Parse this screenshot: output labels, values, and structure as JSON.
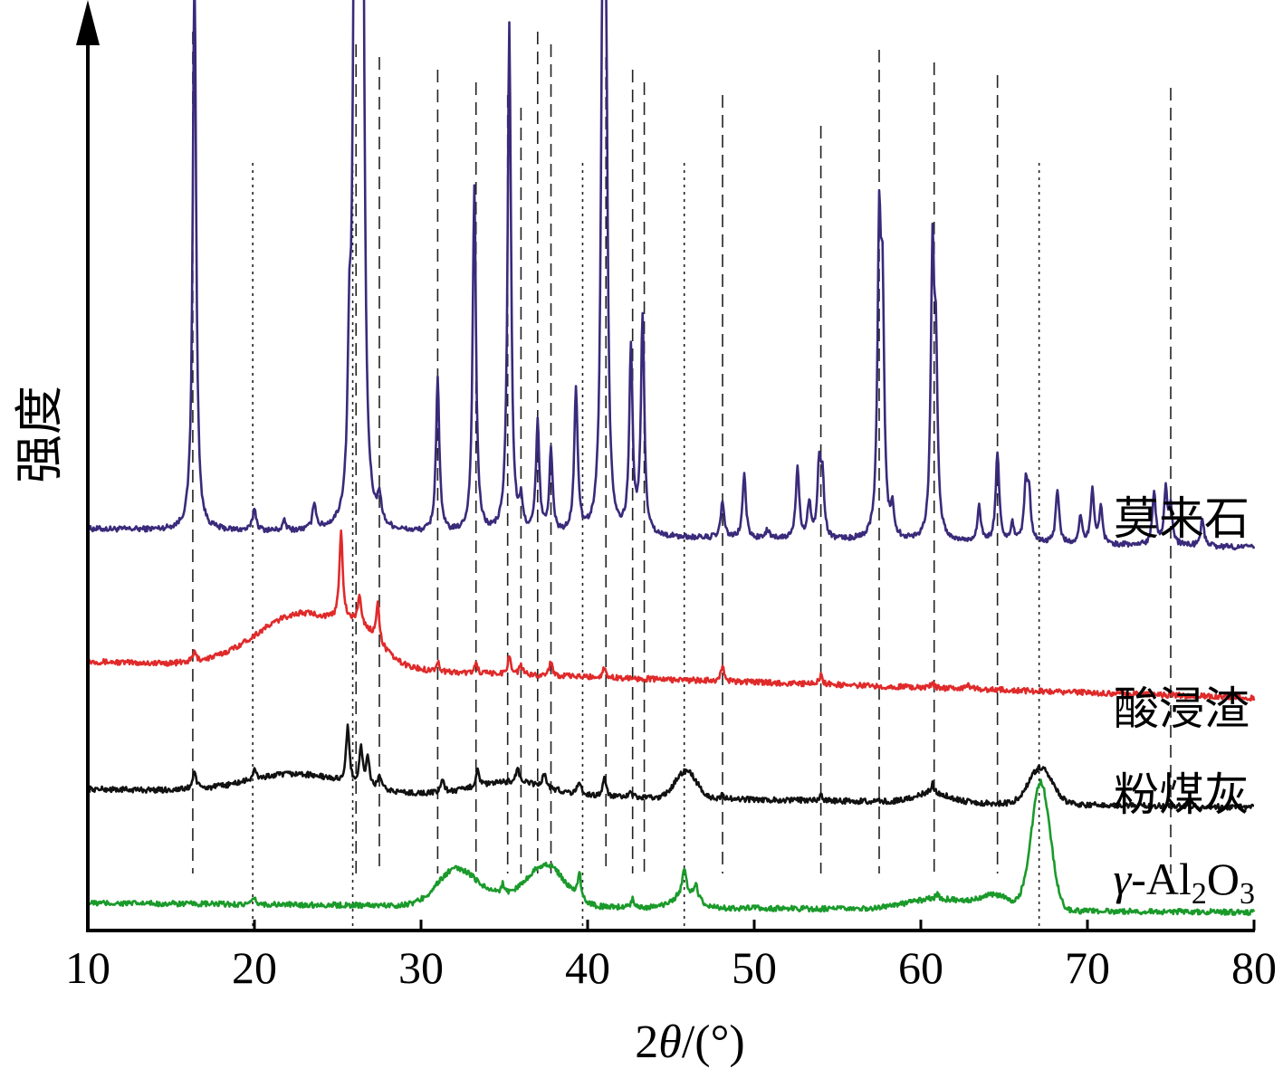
{
  "chart_data": {
    "type": "line",
    "xlabel": "2θ/(°)",
    "xlabel_parts": {
      "prefix": "2",
      "theta": "θ",
      "suffix": "/(°)"
    },
    "ylabel": "强度",
    "xlim": [
      10,
      80
    ],
    "xticks": [
      10,
      20,
      30,
      40,
      50,
      60,
      70,
      80
    ],
    "ylim": [
      0,
      1
    ],
    "y_ticks_shown": false,
    "grid": false,
    "legend": "inline labels at right end of each trace",
    "series": [
      {
        "name": "莫来石",
        "color": "#3a2a7a",
        "baseline": 0.44,
        "peaks": [
          [
            16.4,
            0.62
          ],
          [
            20.0,
            0.025
          ],
          [
            21.8,
            0.01
          ],
          [
            23.6,
            0.03
          ],
          [
            25.7,
            0.16
          ],
          [
            26.0,
            0.58
          ],
          [
            26.3,
            0.88
          ],
          [
            26.5,
            0.6
          ],
          [
            27.5,
            0.03
          ],
          [
            31.0,
            0.17
          ],
          [
            33.2,
            0.38
          ],
          [
            35.3,
            0.56
          ],
          [
            36.0,
            0.03
          ],
          [
            37.0,
            0.12
          ],
          [
            37.8,
            0.09
          ],
          [
            39.3,
            0.16
          ],
          [
            40.9,
            0.54
          ],
          [
            41.1,
            0.48
          ],
          [
            42.6,
            0.2
          ],
          [
            43.3,
            0.24
          ],
          [
            48.1,
            0.04
          ],
          [
            49.4,
            0.07
          ],
          [
            50.8,
            0.01
          ],
          [
            52.6,
            0.08
          ],
          [
            53.3,
            0.04
          ],
          [
            53.9,
            0.08
          ],
          [
            54.1,
            0.06
          ],
          [
            57.5,
            0.32
          ],
          [
            57.7,
            0.24
          ],
          [
            58.3,
            0.03
          ],
          [
            60.7,
            0.3
          ],
          [
            60.9,
            0.18
          ],
          [
            63.5,
            0.04
          ],
          [
            64.6,
            0.1
          ],
          [
            65.5,
            0.02
          ],
          [
            66.3,
            0.06
          ],
          [
            66.5,
            0.05
          ],
          [
            68.2,
            0.06
          ],
          [
            69.6,
            0.03
          ],
          [
            70.3,
            0.06
          ],
          [
            70.8,
            0.04
          ],
          [
            74.0,
            0.06
          ],
          [
            74.7,
            0.06
          ],
          [
            75.0,
            0.04
          ],
          [
            76.9,
            0.03
          ]
        ],
        "humps": [],
        "slope": -0.02
      },
      {
        "name": "酸浸渣",
        "color": "#e02a2a",
        "baseline": 0.295,
        "peaks": [
          [
            16.4,
            0.01
          ],
          [
            25.2,
            0.1
          ],
          [
            26.3,
            0.03
          ],
          [
            27.4,
            0.04
          ],
          [
            31.0,
            0.01
          ],
          [
            33.3,
            0.01
          ],
          [
            35.3,
            0.02
          ],
          [
            36.0,
            0.01
          ],
          [
            37.8,
            0.015
          ],
          [
            41.0,
            0.01
          ],
          [
            48.1,
            0.015
          ],
          [
            54.0,
            0.01
          ],
          [
            60.7,
            0.005
          ],
          [
            62.8,
            0.005
          ]
        ],
        "humps": [
          [
            23.0,
            0.06,
            4.0
          ],
          [
            26.5,
            0.02,
            1.5
          ]
        ],
        "slope": -0.04
      },
      {
        "name": "粉煤灰",
        "color": "#111111",
        "baseline": 0.155,
        "peaks": [
          [
            16.4,
            0.02
          ],
          [
            20.0,
            0.01
          ],
          [
            25.6,
            0.06
          ],
          [
            26.4,
            0.04
          ],
          [
            26.8,
            0.03
          ],
          [
            27.5,
            0.015
          ],
          [
            31.3,
            0.015
          ],
          [
            33.4,
            0.02
          ],
          [
            35.8,
            0.015
          ],
          [
            37.4,
            0.015
          ],
          [
            39.5,
            0.015
          ],
          [
            41.0,
            0.02
          ],
          [
            42.6,
            0.005
          ],
          [
            48.1,
            0.005
          ],
          [
            54.0,
            0.005
          ],
          [
            60.7,
            0.01
          ]
        ],
        "humps": [
          [
            22.5,
            0.02,
            4.0
          ],
          [
            35.5,
            0.015,
            3.0
          ],
          [
            45.9,
            0.03,
            0.9
          ],
          [
            67.2,
            0.04,
            1.0
          ],
          [
            60.7,
            0.01,
            1.5
          ]
        ],
        "slope": -0.02
      },
      {
        "name": "γ-Al₂O₃",
        "label_parts": {
          "prefix": "γ",
          "mid1": "-Al",
          "sub1": "2",
          "mid2": "O",
          "sub2": "3"
        },
        "color": "#1a9a2a",
        "baseline": 0.03,
        "peaks": [
          [
            20.0,
            0.006
          ],
          [
            34.9,
            0.01
          ],
          [
            39.5,
            0.03
          ],
          [
            42.7,
            0.01
          ],
          [
            45.8,
            0.03
          ],
          [
            46.5,
            0.015
          ],
          [
            61.0,
            0.005
          ]
        ],
        "humps": [
          [
            32.0,
            0.03,
            1.5
          ],
          [
            37.5,
            0.045,
            1.6
          ],
          [
            33.5,
            0.015,
            2.5
          ],
          [
            45.9,
            0.015,
            1.0
          ],
          [
            60.9,
            0.012,
            2.5
          ],
          [
            64.5,
            0.015,
            1.5
          ],
          [
            67.2,
            0.14,
            0.8
          ]
        ],
        "slope": -0.01
      }
    ],
    "reference_lines": {
      "dashed": [
        16.3,
        26.1,
        27.5,
        31.0,
        33.3,
        35.2,
        36.0,
        37.0,
        37.8,
        41.1,
        42.7,
        43.4,
        48.1,
        54.0,
        57.5,
        60.8,
        64.6,
        75.0
      ],
      "dotted": [
        19.9,
        25.9,
        39.7,
        45.8,
        67.1
      ]
    }
  }
}
